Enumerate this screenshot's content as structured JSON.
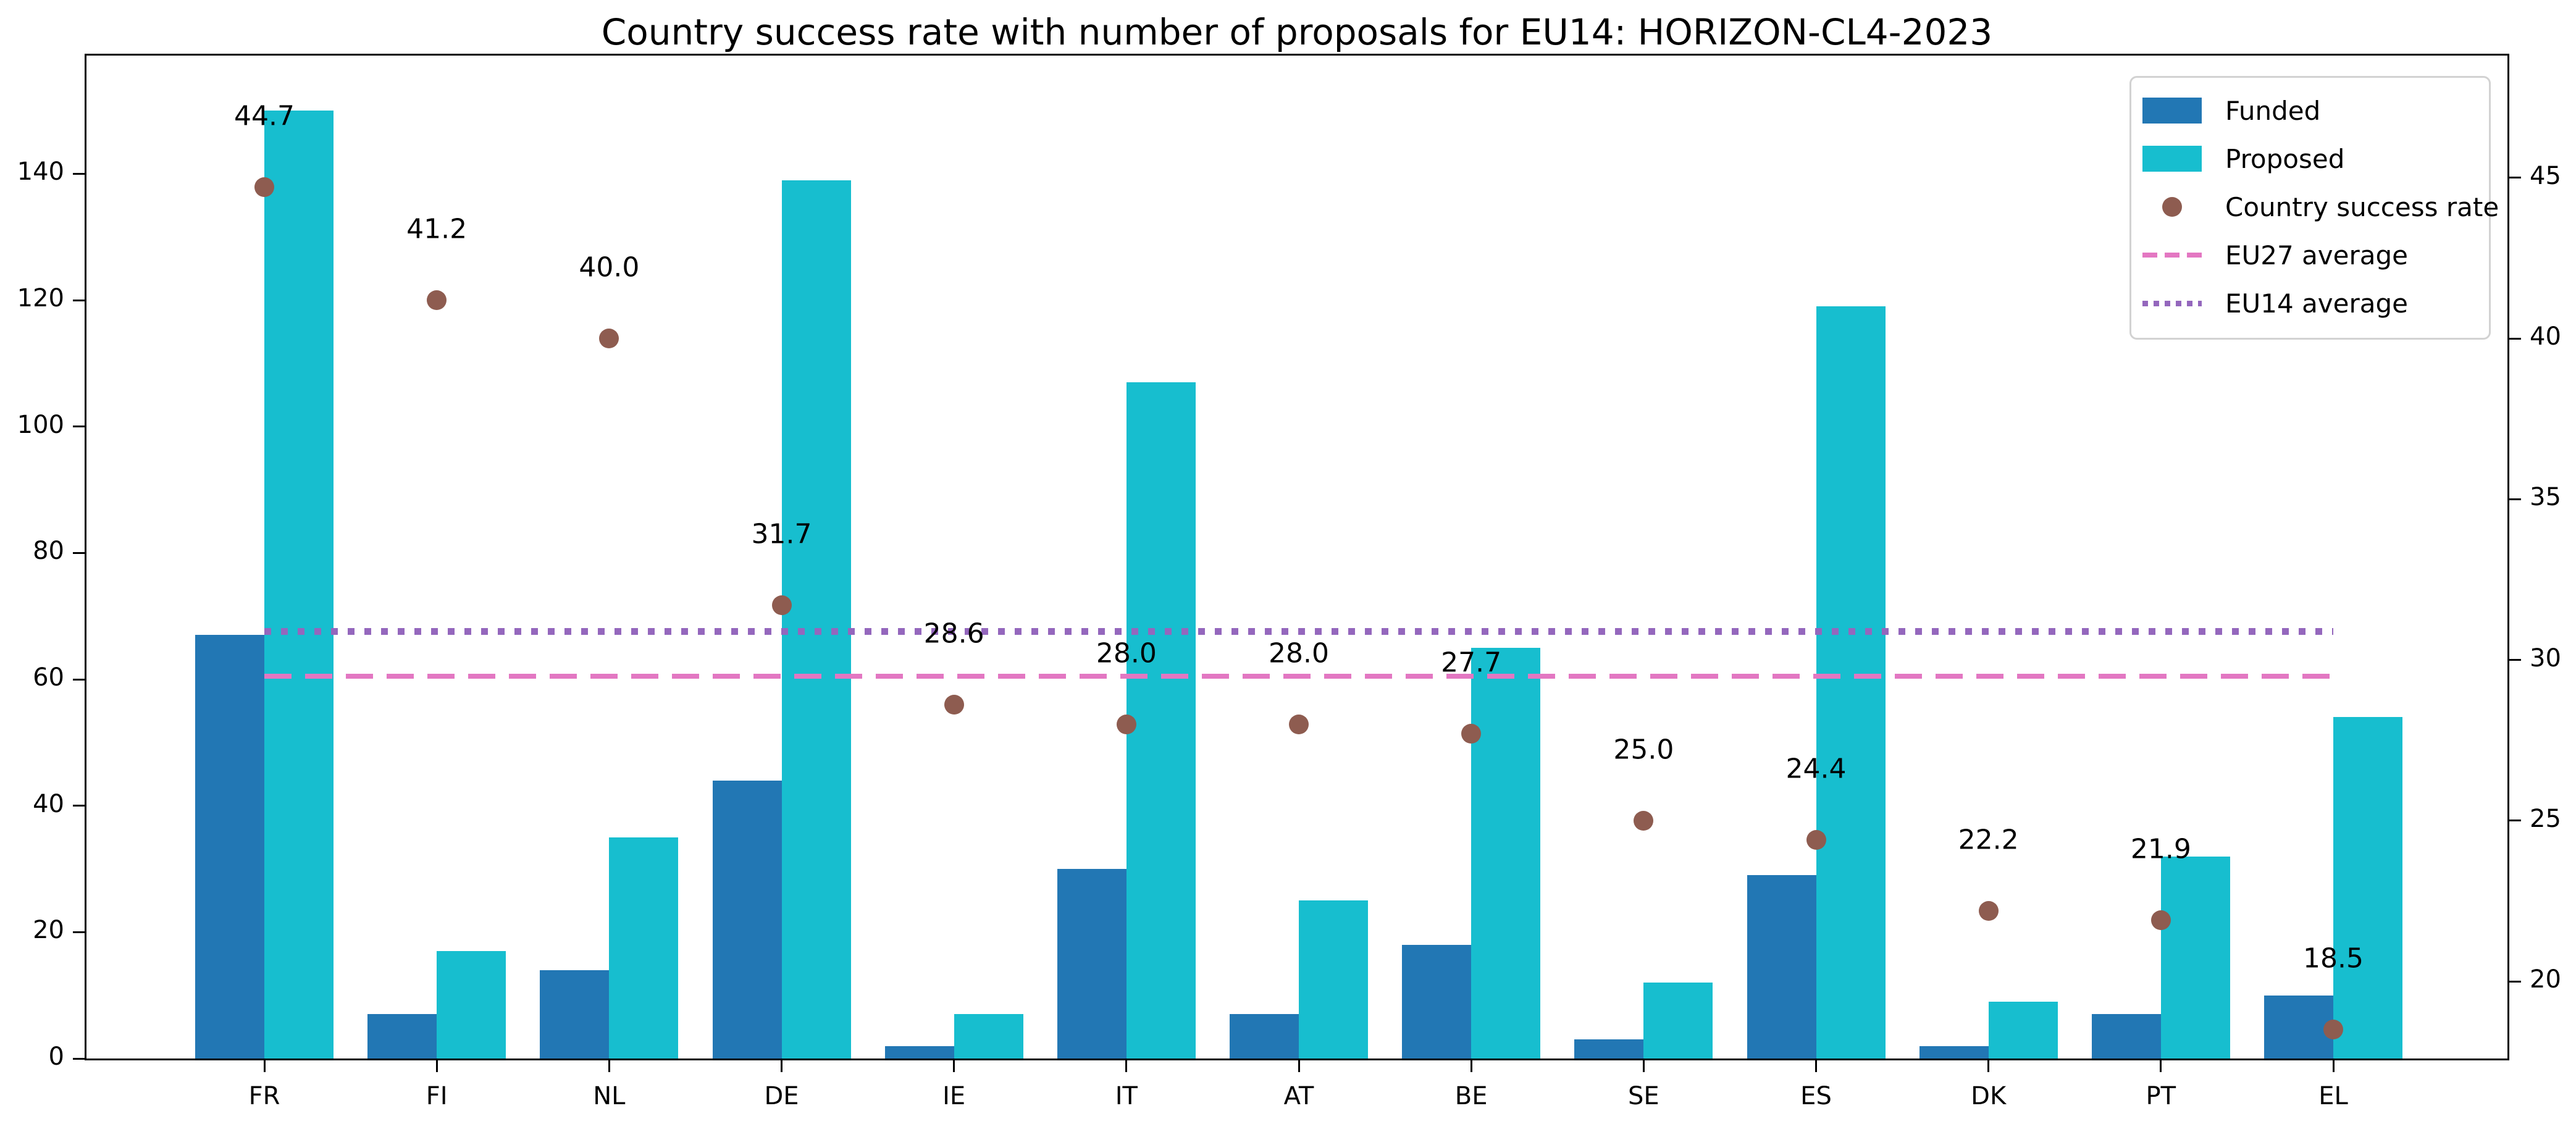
{
  "chart_data": {
    "type": "bar",
    "title": "Country success rate with number of proposals for EU14: HORIZON-CL4-2023",
    "categories": [
      "FR",
      "FI",
      "NL",
      "DE",
      "IE",
      "IT",
      "AT",
      "BE",
      "SE",
      "ES",
      "DK",
      "PT",
      "EL"
    ],
    "series": [
      {
        "name": "Funded",
        "type": "bar",
        "axis": "left",
        "color": "#2277b4",
        "values": [
          67,
          7,
          14,
          44,
          2,
          30,
          7,
          18,
          3,
          29,
          2,
          7,
          10
        ]
      },
      {
        "name": "Proposed",
        "type": "bar",
        "axis": "left",
        "color": "#17becf",
        "values": [
          150,
          17,
          35,
          139,
          7,
          107,
          25,
          65,
          12,
          119,
          9,
          32,
          54
        ]
      },
      {
        "name": "Country success rate",
        "type": "scatter",
        "axis": "right",
        "color": "#8e5c50",
        "values": [
          44.7,
          41.2,
          40.0,
          31.7,
          28.6,
          28.0,
          28.0,
          27.7,
          25.0,
          24.4,
          22.2,
          21.9,
          18.5
        ],
        "labels": [
          "44.7",
          "41.2",
          "40.0",
          "31.7",
          "28.6",
          "28.0",
          "28.0",
          "27.7",
          "25.0",
          "24.4",
          "22.2",
          "21.9",
          "18.5"
        ]
      },
      {
        "name": "EU27 average",
        "type": "hline",
        "axis": "right",
        "linestyle": "dashed",
        "color": "#e377c2",
        "value": 29.5
      },
      {
        "name": "EU14 average",
        "type": "hline",
        "axis": "right",
        "linestyle": "dotted",
        "color": "#9467bd",
        "value": 30.9
      }
    ],
    "left_axis": {
      "ticks": [
        0,
        20,
        40,
        60,
        80,
        100,
        120,
        140
      ],
      "range": [
        0,
        158.7
      ]
    },
    "right_axis": {
      "ticks": [
        20,
        25,
        30,
        35,
        40,
        45
      ],
      "range": [
        17.6,
        48.8
      ]
    },
    "legend": {
      "position": "upper right",
      "entries": [
        "Funded",
        "Proposed",
        "Country success rate",
        "EU27 average",
        "EU14 average"
      ]
    },
    "grid": false
  }
}
